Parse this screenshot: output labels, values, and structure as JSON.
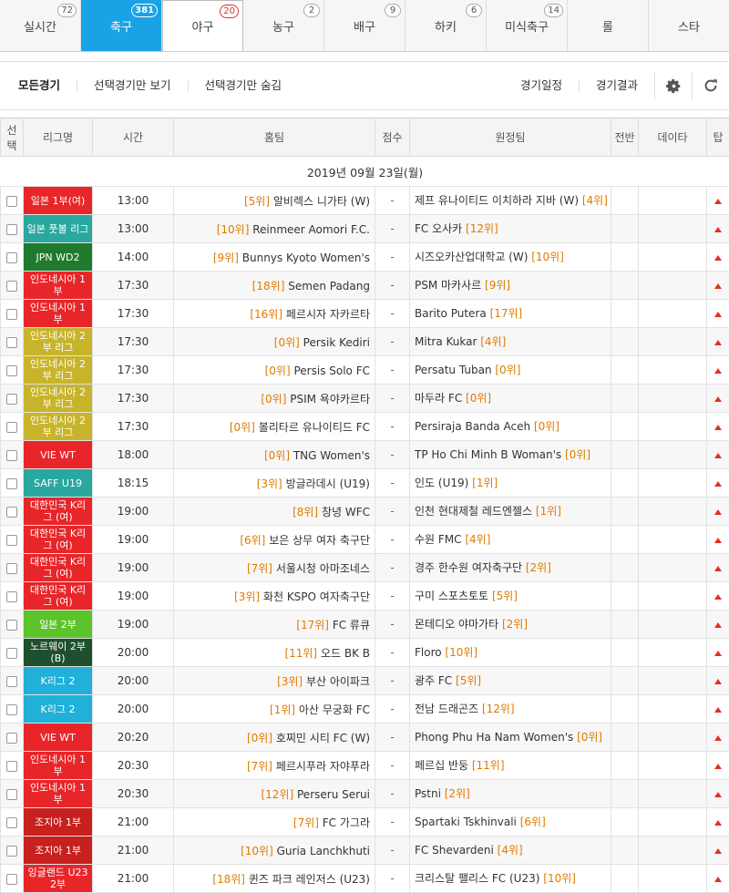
{
  "tabs": [
    {
      "label": "실시간",
      "count": "72",
      "state": "normal"
    },
    {
      "label": "축구",
      "count": "381",
      "state": "active"
    },
    {
      "label": "야구",
      "count": "20",
      "state": "sel"
    },
    {
      "label": "농구",
      "count": "2",
      "state": "normal"
    },
    {
      "label": "배구",
      "count": "9",
      "state": "normal"
    },
    {
      "label": "하키",
      "count": "6",
      "state": "normal"
    },
    {
      "label": "미식축구",
      "count": "14",
      "state": "normal"
    },
    {
      "label": "롤",
      "count": "",
      "state": "normal"
    },
    {
      "label": "스타",
      "count": "",
      "state": "normal"
    }
  ],
  "filter": {
    "all": "모든경기",
    "show_selected": "선택경기만 보기",
    "hide_selected": "선택경기만 숨김",
    "schedule": "경기일정",
    "results": "경기결과"
  },
  "headers": {
    "select": "선택",
    "league": "리그명",
    "time": "시간",
    "home": "홈팀",
    "score": "점수",
    "away": "원정팀",
    "half": "전반",
    "data": "데이타",
    "tip": "탑"
  },
  "date_label": "2019년 09월 23일(월)",
  "matches": [
    {
      "league": "일본 1부(여)",
      "color": "#e8262a",
      "time": "13:00",
      "home_rank": "[5위]",
      "home": "알비렉스 니가타 (W)",
      "score": "-",
      "away": "제프 유나이티드 이치하라 지바 (W)",
      "away_rank": "[4위]"
    },
    {
      "league": "일본 풋볼 리그",
      "color": "#2aa8a0",
      "time": "13:00",
      "home_rank": "[10위]",
      "home": "Reinmeer Aomori F.C.",
      "score": "-",
      "away": "FC 오사카",
      "away_rank": "[12위]"
    },
    {
      "league": "JPN WD2",
      "color": "#207a2e",
      "time": "14:00",
      "home_rank": "[9위]",
      "home": "Bunnys Kyoto Women's",
      "score": "-",
      "away": "시즈오카산업대학교 (W)",
      "away_rank": "[10위]"
    },
    {
      "league": "인도네시아 1부",
      "color": "#e8262a",
      "time": "17:30",
      "home_rank": "[18위]",
      "home": "Semen Padang",
      "score": "-",
      "away": "PSM 마카사르",
      "away_rank": "[9위]"
    },
    {
      "league": "인도네시아 1부",
      "color": "#e8262a",
      "time": "17:30",
      "home_rank": "[16위]",
      "home": "페르시자 자카르타",
      "score": "-",
      "away": "Barito Putera",
      "away_rank": "[17위]"
    },
    {
      "league": "인도네시아 2부 리그",
      "color": "#c8b42a",
      "time": "17:30",
      "home_rank": "[0위]",
      "home": "Persik Kediri",
      "score": "-",
      "away": "Mitra Kukar",
      "away_rank": "[4위]"
    },
    {
      "league": "인도네시아 2부 리그",
      "color": "#c8b42a",
      "time": "17:30",
      "home_rank": "[0위]",
      "home": "Persis Solo FC",
      "score": "-",
      "away": "Persatu Tuban",
      "away_rank": "[0위]"
    },
    {
      "league": "인도네시아 2부 리그",
      "color": "#c8b42a",
      "time": "17:30",
      "home_rank": "[0위]",
      "home": "PSIM 욕야카르타",
      "score": "-",
      "away": "마두라 FC",
      "away_rank": "[0위]"
    },
    {
      "league": "인도네시아 2부 리그",
      "color": "#c8b42a",
      "time": "17:30",
      "home_rank": "[0위]",
      "home": "볼리타르 유나이티드 FC",
      "score": "-",
      "away": "Persiraja Banda Aceh",
      "away_rank": "[0위]"
    },
    {
      "league": "VIE WT",
      "color": "#e8262a",
      "time": "18:00",
      "home_rank": "[0위]",
      "home": "TNG Women's",
      "score": "-",
      "away": "TP Ho Chi Minh B Woman's",
      "away_rank": "[0위]"
    },
    {
      "league": "SAFF U19",
      "color": "#2aa8a0",
      "time": "18:15",
      "home_rank": "[3위]",
      "home": "방글라데시 (U19)",
      "score": "-",
      "away": "인도 (U19)",
      "away_rank": "[1위]"
    },
    {
      "league": "대한민국 K리그 (여)",
      "color": "#e8262a",
      "time": "19:00",
      "home_rank": "[8위]",
      "home": "창녕 WFC",
      "score": "-",
      "away": "인천 현대제철 레드엔젤스",
      "away_rank": "[1위]"
    },
    {
      "league": "대한민국 K리그 (여)",
      "color": "#e8262a",
      "time": "19:00",
      "home_rank": "[6위]",
      "home": "보은 상무 여자 축구단",
      "score": "-",
      "away": "수원 FMC",
      "away_rank": "[4위]"
    },
    {
      "league": "대한민국 K리그 (여)",
      "color": "#e8262a",
      "time": "19:00",
      "home_rank": "[7위]",
      "home": "서울시청 아마조네스",
      "score": "-",
      "away": "경주 한수원 여자축구단",
      "away_rank": "[2위]"
    },
    {
      "league": "대한민국 K리그 (여)",
      "color": "#e8262a",
      "time": "19:00",
      "home_rank": "[3위]",
      "home": "화천 KSPO 여자축구단",
      "score": "-",
      "away": "구미 스포츠토토",
      "away_rank": "[5위]"
    },
    {
      "league": "일본 2부",
      "color": "#5cc42a",
      "time": "19:00",
      "home_rank": "[17위]",
      "home": "FC 류큐",
      "score": "-",
      "away": "몬테디오 야마가타",
      "away_rank": "[2위]"
    },
    {
      "league": "노르웨이 2부(B)",
      "color": "#1e4f2e",
      "time": "20:00",
      "home_rank": "[11위]",
      "home": "오드 BK B",
      "score": "-",
      "away": "Floro",
      "away_rank": "[10위]"
    },
    {
      "league": "K리그 2",
      "color": "#20b0d8",
      "time": "20:00",
      "home_rank": "[3위]",
      "home": "부산 아이파크",
      "score": "-",
      "away": "광주 FC",
      "away_rank": "[5위]"
    },
    {
      "league": "K리그 2",
      "color": "#20b0d8",
      "time": "20:00",
      "home_rank": "[1위]",
      "home": "아산 무궁화 FC",
      "score": "-",
      "away": "전남 드래곤즈",
      "away_rank": "[12위]"
    },
    {
      "league": "VIE WT",
      "color": "#e8262a",
      "time": "20:20",
      "home_rank": "[0위]",
      "home": "호찌민 시티 FC (W)",
      "score": "-",
      "away": "Phong Phu Ha Nam Women's",
      "away_rank": "[0위]"
    },
    {
      "league": "인도네시아 1부",
      "color": "#e8262a",
      "time": "20:30",
      "home_rank": "[7위]",
      "home": "페르시푸라 자야푸라",
      "score": "-",
      "away": "페르십 반둥",
      "away_rank": "[11위]"
    },
    {
      "league": "인도네시아 1부",
      "color": "#e8262a",
      "time": "20:30",
      "home_rank": "[12위]",
      "home": "Perseru Serui",
      "score": "-",
      "away": "Pstni",
      "away_rank": "[2위]"
    },
    {
      "league": "조지아 1부",
      "color": "#c8201e",
      "time": "21:00",
      "home_rank": "[7위]",
      "home": "FC 가그라",
      "score": "-",
      "away": "Spartaki Tskhinvali",
      "away_rank": "[6위]"
    },
    {
      "league": "조지아 1부",
      "color": "#c8201e",
      "time": "21:00",
      "home_rank": "[10위]",
      "home": "Guria Lanchkhuti",
      "score": "-",
      "away": "FC Shevardeni",
      "away_rank": "[4위]"
    },
    {
      "league": "잉글랜드 U23 2부",
      "color": "#e8262a",
      "time": "21:00",
      "home_rank": "[18위]",
      "home": "퀸즈 파크 레인저스 (U23)",
      "score": "-",
      "away": "크리스탈 팰리스 FC (U23)",
      "away_rank": "[10위]"
    }
  ]
}
